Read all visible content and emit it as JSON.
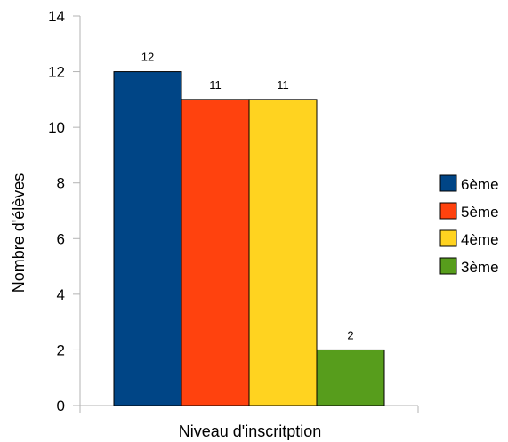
{
  "chart_data": {
    "type": "bar",
    "categories": [
      "Niveau d'inscritption"
    ],
    "series": [
      {
        "name": "6ème",
        "values": [
          12
        ],
        "color": "#004586"
      },
      {
        "name": "5ème",
        "values": [
          11
        ],
        "color": "#ff420e"
      },
      {
        "name": "4ème",
        "values": [
          11
        ],
        "color": "#ffd320"
      },
      {
        "name": "3ème",
        "values": [
          2
        ],
        "color": "#579d1c"
      }
    ],
    "data_labels": [
      "12",
      "11",
      "11",
      "2"
    ],
    "xlabel": "Niveau d'inscritption",
    "ylabel": "Nombre d'élèves",
    "ylim": [
      0,
      14
    ],
    "yticks": [
      "0",
      "2",
      "4",
      "6",
      "8",
      "10",
      "12",
      "14"
    ],
    "grid": false,
    "legend_position": "right"
  }
}
